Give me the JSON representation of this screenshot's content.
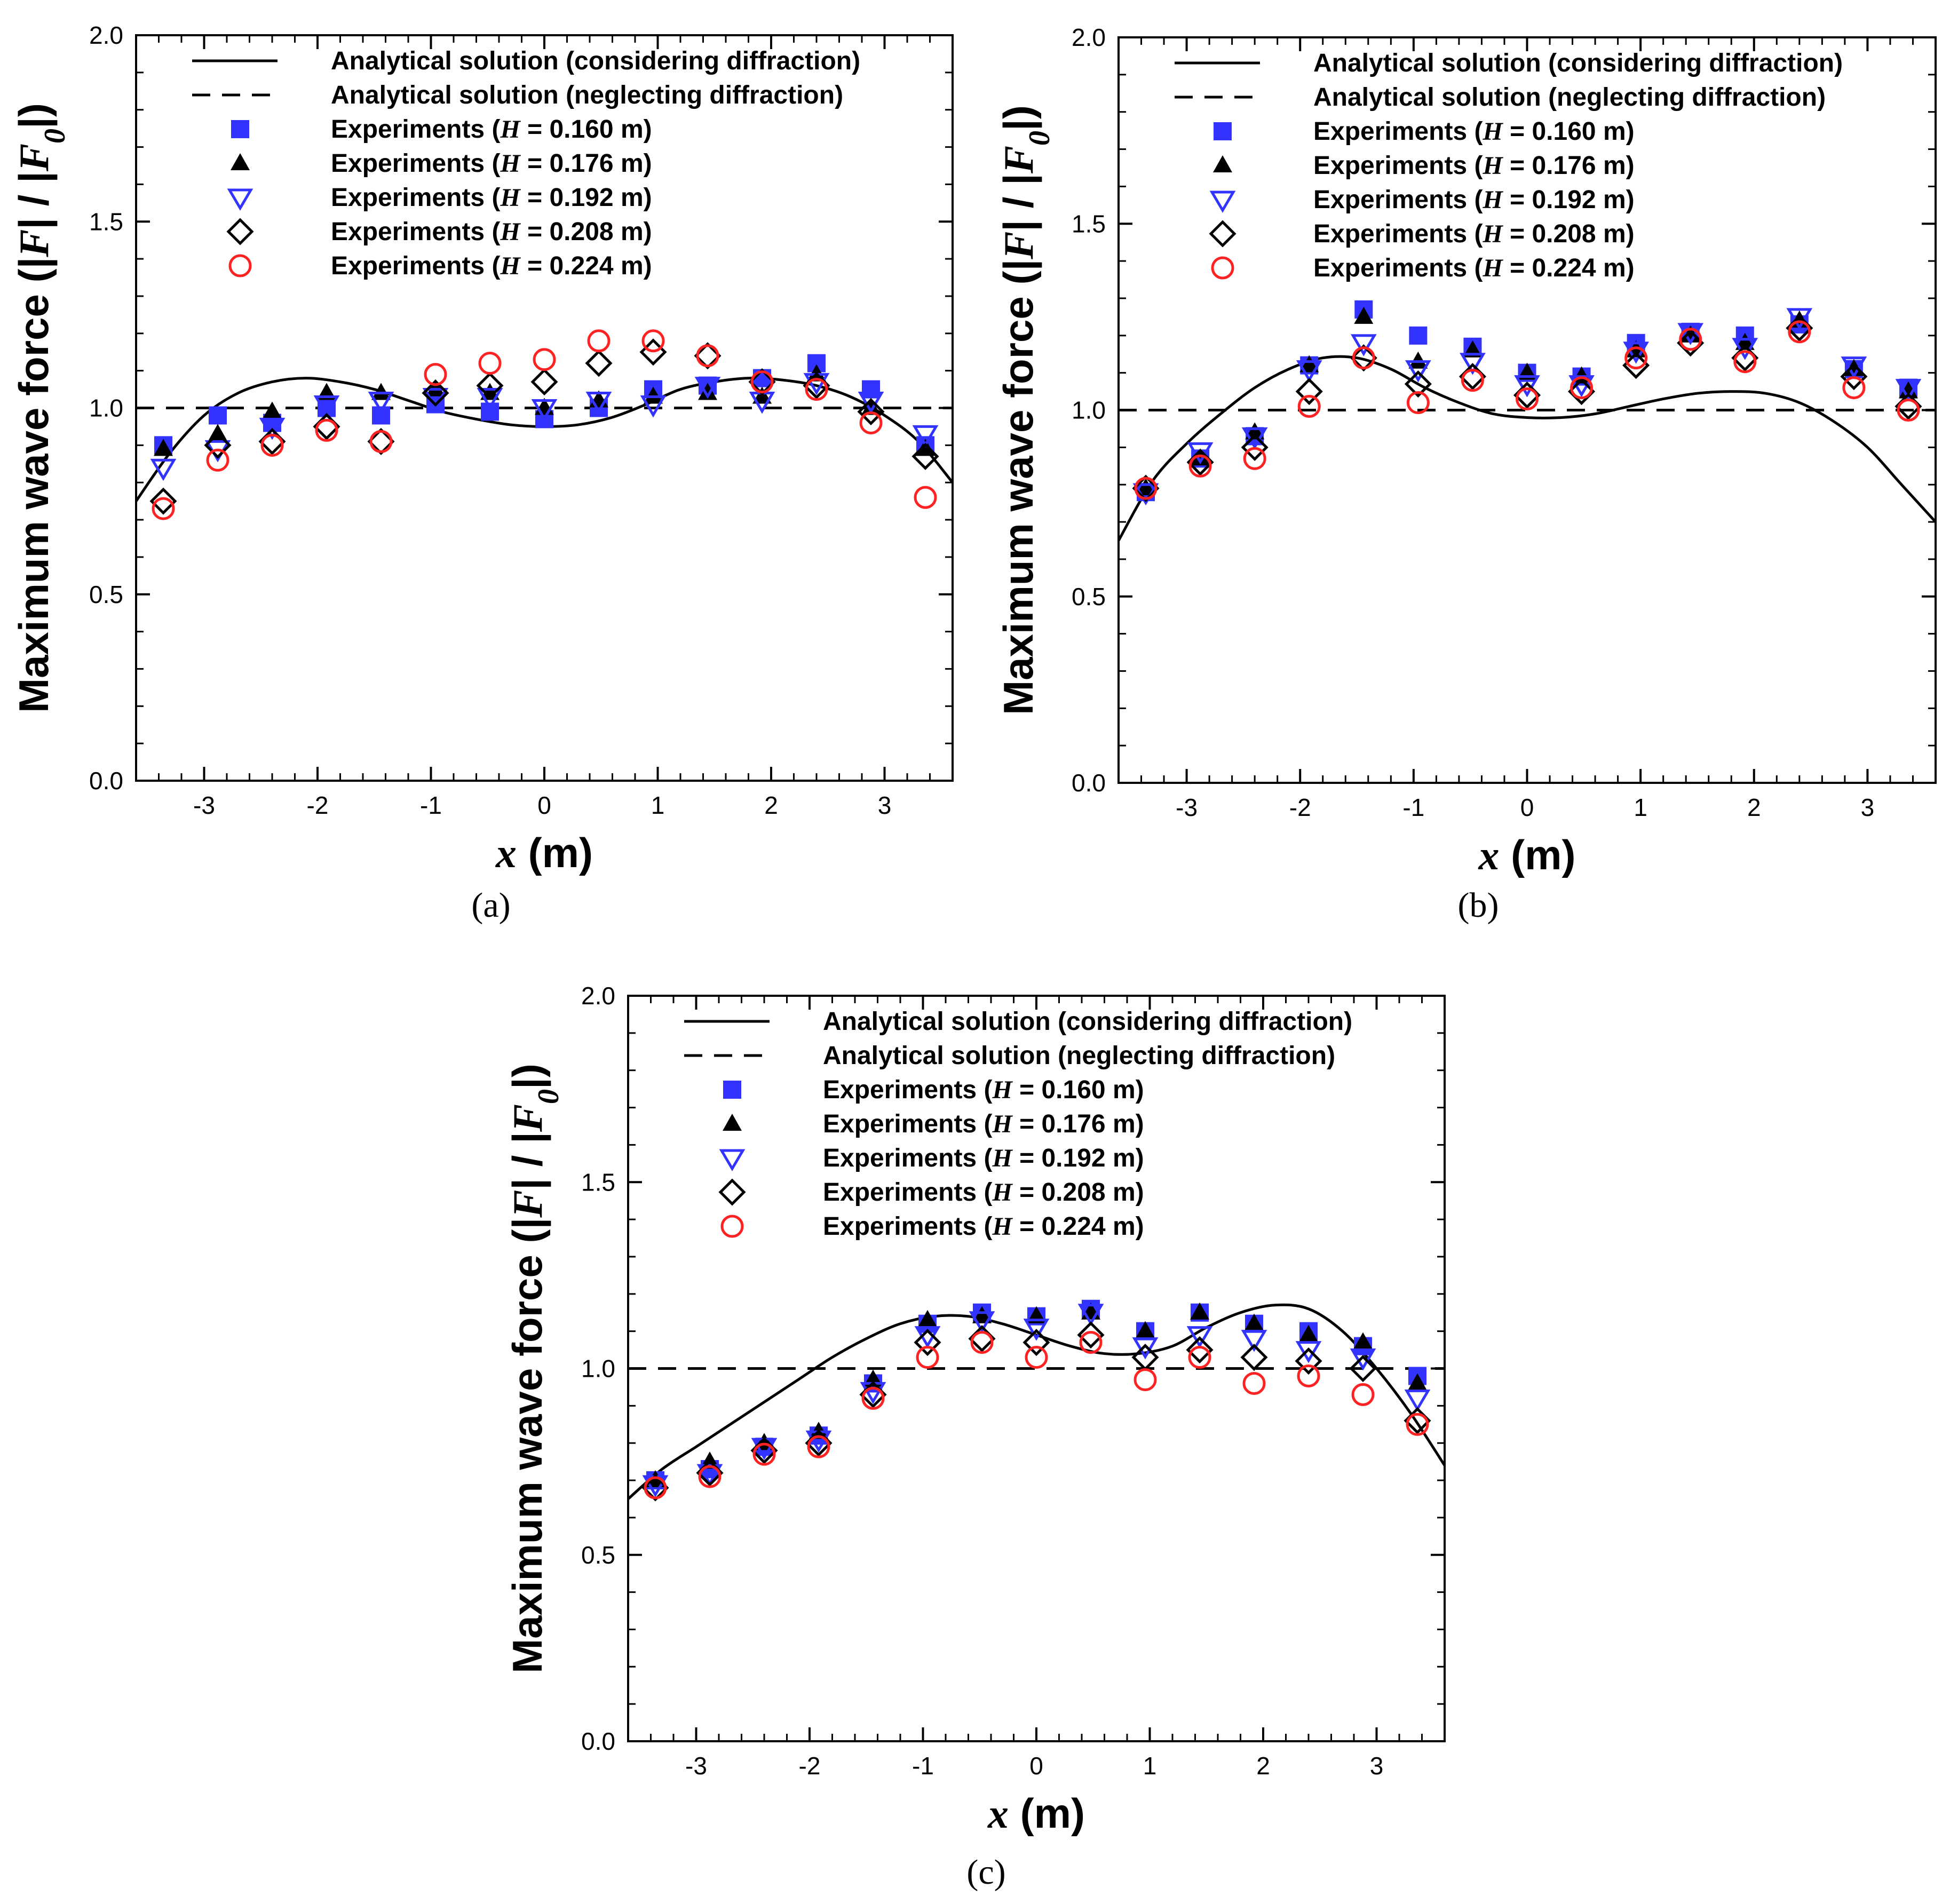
{
  "figure": {
    "legend_entries": [
      "Analytical solution (considering diffraction)",
      "Analytical solution (neglecting diffraction)",
      "Experiments (H = 0.160 m)",
      "Experiments (H = 0.176 m)",
      "Experiments (H = 0.192 m)",
      "Experiments (H = 0.208 m)",
      "Experiments (H = 0.224 m)"
    ],
    "colors": {
      "blue": "#3333ff",
      "red": "#ff2222",
      "black": "#000000"
    }
  },
  "chart_data": [
    {
      "type": "scatter",
      "caption": "(a)",
      "xlabel": "x (m)",
      "ylabel": "Maximum wave force (|F| / |F0|)",
      "xlim": [
        -3.6,
        3.6
      ],
      "ylim": [
        0,
        2
      ],
      "xticks": [
        -3,
        -2,
        -1,
        0,
        1,
        2,
        3
      ],
      "yticks": [
        "0.0",
        "0.5",
        "1.0",
        "1.5",
        "2.0"
      ],
      "grid": false,
      "legend_position": "top-right",
      "x": [
        -3.36,
        -2.88,
        -2.4,
        -1.92,
        -1.44,
        -0.96,
        -0.48,
        0,
        0.48,
        0.96,
        1.44,
        1.92,
        2.4,
        2.88,
        3.36
      ],
      "series": [
        {
          "name": "Analytical solution (considering diffraction)",
          "kind": "curve",
          "x": [
            -3.6,
            -3.3,
            -3.0,
            -2.7,
            -2.4,
            -2.1,
            -1.8,
            -1.5,
            -1.2,
            -0.9,
            -0.6,
            -0.3,
            0.0,
            0.3,
            0.6,
            0.9,
            1.2,
            1.5,
            1.8,
            2.1,
            2.4,
            2.7,
            3.0,
            3.3,
            3.6
          ],
          "y": [
            0.75,
            0.88,
            0.98,
            1.04,
            1.07,
            1.08,
            1.07,
            1.05,
            1.02,
            0.99,
            0.97,
            0.955,
            0.95,
            0.955,
            0.975,
            1.01,
            1.05,
            1.07,
            1.08,
            1.075,
            1.06,
            1.03,
            0.98,
            0.91,
            0.8
          ]
        },
        {
          "name": "Analytical solution (neglecting diffraction)",
          "kind": "dashed",
          "x": [
            -3.6,
            3.6
          ],
          "y": [
            1.0,
            1.0
          ]
        },
        {
          "name": "Experiments (H = 0.160 m)",
          "marker": "square",
          "y": [
            0.9,
            0.98,
            0.96,
            1.0,
            0.98,
            1.01,
            0.99,
            0.97,
            1.0,
            1.05,
            1.06,
            1.08,
            1.12,
            1.05,
            0.9
          ]
        },
        {
          "name": "Experiments (H = 0.176 m)",
          "marker": "triangle-up",
          "y": [
            0.89,
            0.93,
            0.99,
            1.04,
            1.04,
            1.05,
            1.04,
            1.0,
            1.02,
            1.03,
            1.04,
            1.03,
            1.09,
            1.0,
            0.89
          ]
        },
        {
          "name": "Experiments (H = 0.192 m)",
          "marker": "triangle-down",
          "y": [
            0.84,
            0.89,
            0.95,
            1.01,
            1.02,
            1.03,
            1.03,
            1.0,
            1.02,
            1.01,
            1.06,
            1.02,
            1.07,
            1.02,
            0.93
          ]
        },
        {
          "name": "Experiments (H = 0.208 m)",
          "marker": "diamond",
          "y": [
            0.75,
            0.9,
            0.91,
            0.95,
            0.91,
            1.04,
            1.06,
            1.07,
            1.12,
            1.15,
            1.14,
            1.07,
            1.06,
            0.99,
            0.87
          ]
        },
        {
          "name": "Experiments (H = 0.224 m)",
          "marker": "circle",
          "y": [
            0.73,
            0.86,
            0.9,
            0.94,
            0.91,
            1.09,
            1.12,
            1.13,
            1.18,
            1.18,
            1.14,
            1.07,
            1.05,
            0.96,
            0.76
          ]
        }
      ]
    },
    {
      "type": "scatter",
      "caption": "(b)",
      "xlabel": "x (m)",
      "ylabel": "Maximum wave force (|F| / |F0|)",
      "xlim": [
        -3.6,
        3.6
      ],
      "ylim": [
        0,
        2
      ],
      "xticks": [
        -3,
        -2,
        -1,
        0,
        1,
        2,
        3
      ],
      "yticks": [
        "0.0",
        "0.5",
        "1.0",
        "1.5",
        "2.0"
      ],
      "grid": false,
      "legend_position": "top-right",
      "x": [
        -3.36,
        -2.88,
        -2.4,
        -1.92,
        -1.44,
        -0.96,
        -0.48,
        0,
        0.48,
        0.96,
        1.44,
        1.92,
        2.4,
        2.88,
        3.36
      ],
      "series": [
        {
          "name": "Analytical solution (considering diffraction)",
          "kind": "curve",
          "x": [
            -3.6,
            -3.3,
            -3.0,
            -2.7,
            -2.4,
            -2.1,
            -1.8,
            -1.5,
            -1.2,
            -0.9,
            -0.6,
            -0.3,
            0.0,
            0.3,
            0.6,
            0.9,
            1.2,
            1.5,
            1.8,
            2.1,
            2.4,
            2.7,
            3.0,
            3.3,
            3.6
          ],
          "y": [
            0.65,
            0.81,
            0.91,
            0.99,
            1.06,
            1.11,
            1.14,
            1.14,
            1.11,
            1.06,
            1.02,
            0.99,
            0.98,
            0.98,
            0.99,
            1.01,
            1.03,
            1.045,
            1.05,
            1.045,
            1.02,
            0.97,
            0.9,
            0.8,
            0.7
          ]
        },
        {
          "name": "Analytical solution (neglecting diffraction)",
          "kind": "dashed",
          "x": [
            -3.6,
            3.6
          ],
          "y": [
            1.0,
            1.0
          ]
        },
        {
          "name": "Experiments (H = 0.160 m)",
          "marker": "square",
          "y": [
            0.78,
            0.87,
            0.93,
            1.12,
            1.27,
            1.2,
            1.17,
            1.1,
            1.09,
            1.18,
            1.21,
            1.2,
            1.23,
            1.11,
            1.06
          ]
        },
        {
          "name": "Experiments (H = 0.176 m)",
          "marker": "triangle-up",
          "y": [
            0.79,
            0.87,
            0.94,
            1.12,
            1.25,
            1.13,
            1.16,
            1.1,
            1.09,
            1.16,
            1.2,
            1.18,
            1.24,
            1.11,
            1.05
          ]
        },
        {
          "name": "Experiments (H = 0.192 m)",
          "marker": "triangle-down",
          "y": [
            0.78,
            0.89,
            0.93,
            1.11,
            1.18,
            1.11,
            1.13,
            1.07,
            1.07,
            1.16,
            1.21,
            1.17,
            1.25,
            1.12,
            1.06
          ]
        },
        {
          "name": "Experiments (H = 0.208 m)",
          "marker": "diamond",
          "y": [
            0.79,
            0.86,
            0.9,
            1.05,
            1.14,
            1.07,
            1.09,
            1.04,
            1.05,
            1.12,
            1.18,
            1.14,
            1.22,
            1.09,
            1.01
          ]
        },
        {
          "name": "Experiments (H = 0.224 m)",
          "marker": "circle",
          "y": [
            0.79,
            0.85,
            0.87,
            1.01,
            1.14,
            1.02,
            1.08,
            1.03,
            1.06,
            1.14,
            1.19,
            1.13,
            1.21,
            1.06,
            1.0
          ]
        }
      ]
    },
    {
      "type": "scatter",
      "caption": "(c)",
      "xlabel": "x (m)",
      "ylabel": "Maximum wave force (|F| / |F0|)",
      "xlim": [
        -3.6,
        3.6
      ],
      "ylim": [
        0,
        2
      ],
      "xticks": [
        -3,
        -2,
        -1,
        0,
        1,
        2,
        3
      ],
      "yticks": [
        "0.0",
        "0.5",
        "1.0",
        "1.5",
        "2.0"
      ],
      "grid": false,
      "legend_position": "top-right",
      "x": [
        -3.36,
        -2.88,
        -2.4,
        -1.92,
        -1.44,
        -0.96,
        -0.48,
        0,
        0.48,
        0.96,
        1.44,
        1.92,
        2.4,
        2.88,
        3.36
      ],
      "series": [
        {
          "name": "Analytical solution (considering diffraction)",
          "kind": "curve",
          "x": [
            -3.6,
            -3.3,
            -3.0,
            -2.7,
            -2.4,
            -2.1,
            -1.8,
            -1.5,
            -1.2,
            -0.9,
            -0.6,
            -0.3,
            0.0,
            0.3,
            0.6,
            0.9,
            1.2,
            1.5,
            1.8,
            2.1,
            2.4,
            2.7,
            3.0,
            3.3,
            3.6
          ],
          "y": [
            0.65,
            0.73,
            0.79,
            0.85,
            0.91,
            0.97,
            1.03,
            1.08,
            1.12,
            1.14,
            1.14,
            1.12,
            1.09,
            1.06,
            1.04,
            1.04,
            1.06,
            1.11,
            1.15,
            1.17,
            1.16,
            1.1,
            1.0,
            0.88,
            0.74
          ]
        },
        {
          "name": "Analytical solution (neglecting diffraction)",
          "kind": "dashed",
          "x": [
            -3.6,
            3.6
          ],
          "y": [
            1.0,
            1.0
          ]
        },
        {
          "name": "Experiments (H = 0.160 m)",
          "marker": "square",
          "y": [
            0.7,
            0.73,
            0.79,
            0.82,
            0.96,
            1.12,
            1.15,
            1.14,
            1.16,
            1.1,
            1.15,
            1.12,
            1.1,
            1.06,
            0.98
          ]
        },
        {
          "name": "Experiments (H = 0.176 m)",
          "marker": "triangle-up",
          "y": [
            0.7,
            0.75,
            0.8,
            0.83,
            0.97,
            1.13,
            1.14,
            1.14,
            1.15,
            1.1,
            1.15,
            1.12,
            1.09,
            1.07,
            0.96
          ]
        },
        {
          "name": "Experiments (H = 0.192 m)",
          "marker": "triangle-down",
          "y": [
            0.69,
            0.72,
            0.79,
            0.81,
            0.94,
            1.09,
            1.13,
            1.11,
            1.15,
            1.06,
            1.09,
            1.08,
            1.05,
            1.03,
            0.92
          ]
        },
        {
          "name": "Experiments (H = 0.208 m)",
          "marker": "diamond",
          "y": [
            0.68,
            0.72,
            0.78,
            0.8,
            0.93,
            1.07,
            1.08,
            1.07,
            1.09,
            1.03,
            1.05,
            1.03,
            1.02,
            1.0,
            0.86
          ]
        },
        {
          "name": "Experiments (H = 0.224 m)",
          "marker": "circle",
          "y": [
            0.68,
            0.71,
            0.77,
            0.79,
            0.92,
            1.03,
            1.07,
            1.03,
            1.07,
            0.97,
            1.03,
            0.96,
            0.98,
            0.93,
            0.85
          ]
        }
      ]
    }
  ]
}
